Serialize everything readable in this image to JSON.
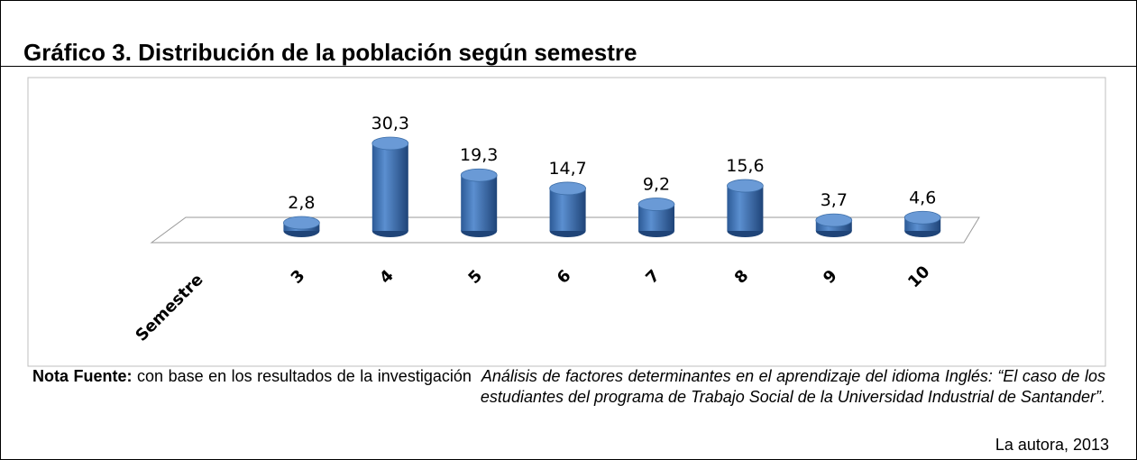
{
  "chart_data": {
    "type": "bar3d",
    "title": "Gráfico 3. Distribución de la población según semestre",
    "categories": [
      "Semestre",
      "3",
      "4",
      "5",
      "6",
      "7",
      "8",
      "9",
      "10"
    ],
    "values": [
      null,
      2.8,
      30.3,
      19.3,
      14.7,
      9.2,
      15.6,
      3.7,
      4.6
    ],
    "value_labels": [
      null,
      "2,8",
      "30,3",
      "19,3",
      "14,7",
      "9,2",
      "15,6",
      "3,7",
      "4,6"
    ],
    "color": "#4f81bd"
  },
  "note": {
    "label": "Nota Fuente:",
    "text": "con base en los resultados de la investigación",
    "source_title": "Análisis de factores determinantes en el aprendizaje del idioma Inglés: “El caso de los estudiantes del programa de Trabajo Social de la Universidad Industrial de Santander”.",
    "credit": "La autora, 2013"
  }
}
